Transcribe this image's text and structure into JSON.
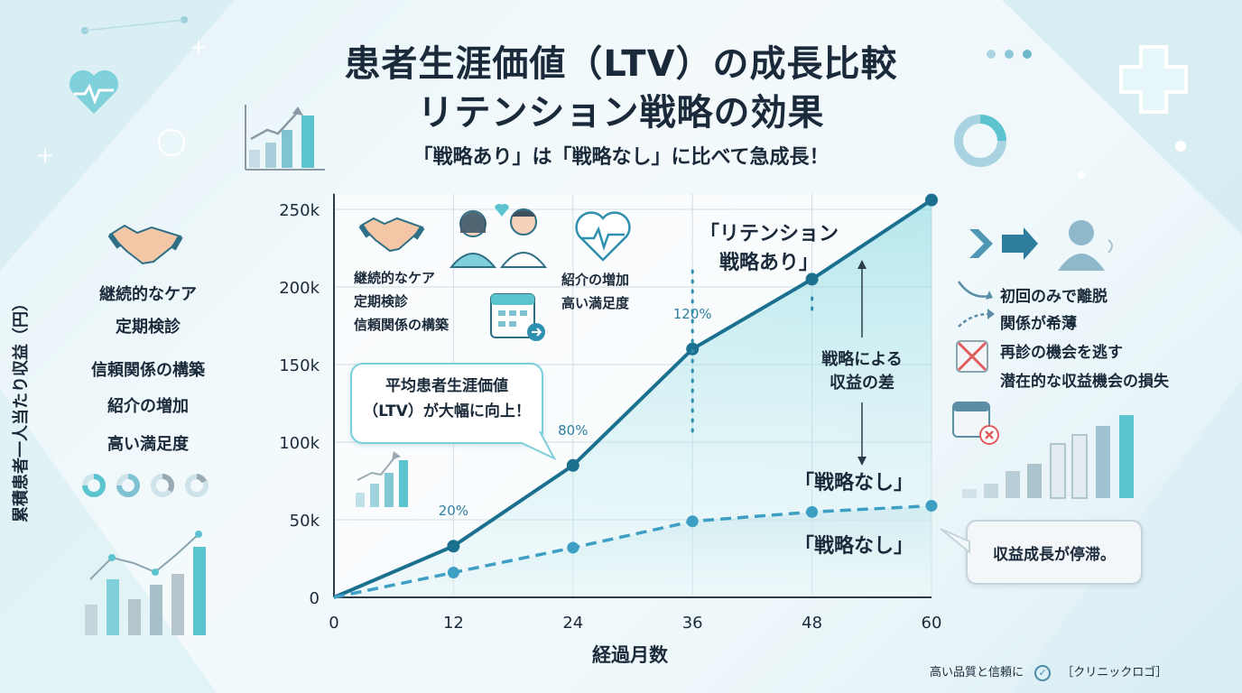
{
  "header": {
    "title_line1": "患者生涯価値（LTV）の成長比較",
    "title_line2": "リテンション戦略の効果",
    "subtitle": "「戦略あり」は「戦略なし」に比べて急成長！"
  },
  "left_panel": {
    "items": [
      "継続的なケア",
      "定期検診",
      "信頼関係の構築",
      "紹介の増加",
      "高い満足度"
    ]
  },
  "inner_panel": {
    "left_items": [
      "継続的なケア",
      "定期検診",
      "信頼関係の構築"
    ],
    "right_items": [
      "紹介の増加",
      "高い満足度"
    ]
  },
  "bubble": {
    "line1": "平均患者生涯価値",
    "line2": "（LTV）が大幅に向上！"
  },
  "right_panel": {
    "items": [
      "初回のみで離脱",
      "関係が希薄",
      "再診の機会を逃す",
      "潜在的な収益機会の損失"
    ]
  },
  "stagnation_box": "収益成長が停滞。",
  "footer": {
    "text": "高い品質と信頼に",
    "logo": "［クリニックロゴ］"
  },
  "colors": {
    "with_strategy": "#1b6f8f",
    "without_strategy": "#3e9fc4",
    "accent": "#5cc4cf"
  },
  "chart_data": {
    "type": "line",
    "xlabel": "経過月数",
    "ylabel": "累積患者一人当たり収益（円）",
    "x": [
      0,
      12,
      24,
      36,
      48,
      60
    ],
    "xticks": [
      "0",
      "12",
      "24",
      "36",
      "48",
      "60"
    ],
    "yticks": [
      "0",
      "50k",
      "100k",
      "150k",
      "200k",
      "250k"
    ],
    "ylim": [
      0,
      260000
    ],
    "xlim": [
      0,
      60
    ],
    "grid": true,
    "series": [
      {
        "name": "「リテンション戦略あり」",
        "values": [
          0,
          33000,
          85000,
          160000,
          205000,
          256000
        ]
      },
      {
        "name": "「戦略なし」",
        "values": [
          0,
          16000,
          32000,
          49000,
          55000,
          59000
        ]
      }
    ],
    "annotations": {
      "pct_labels": [
        {
          "x": 12,
          "text": "20%"
        },
        {
          "x": 24,
          "text": "80%"
        },
        {
          "x": 36,
          "text": "120%"
        }
      ],
      "gap_label": [
        "戦略による",
        "収益の差"
      ],
      "with_label": [
        "「リテンション",
        "戦略あり」"
      ],
      "without_label_top": "「戦略なし」",
      "without_label_bottom": "「戦略なし」"
    }
  }
}
